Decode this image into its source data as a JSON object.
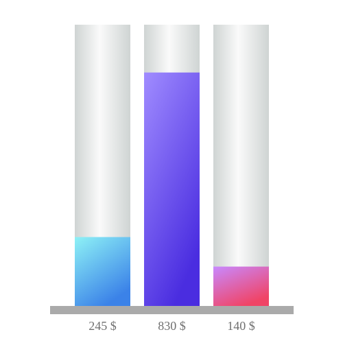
{
  "chart_data": {
    "type": "bar",
    "title": "",
    "xlabel": "",
    "ylabel": "",
    "categories": [
      "245 $",
      "830 $",
      "140 $"
    ],
    "values": [
      245,
      830,
      140
    ],
    "ylim": [
      0,
      1000
    ],
    "grid": false,
    "legend": "none",
    "bar_gradients": [
      {
        "top": "#8ef2f6",
        "bottom": "#3b82e8"
      },
      {
        "top": "#a08cff",
        "bottom": "#4a2de0"
      },
      {
        "top": "#c889ff",
        "bottom": "#f04466"
      }
    ],
    "track_colors": {
      "edge": "#cfd4d3",
      "center": "#fafafa"
    },
    "baseline_color": "#aaaaaa",
    "label_color": "#6f6f6f"
  }
}
